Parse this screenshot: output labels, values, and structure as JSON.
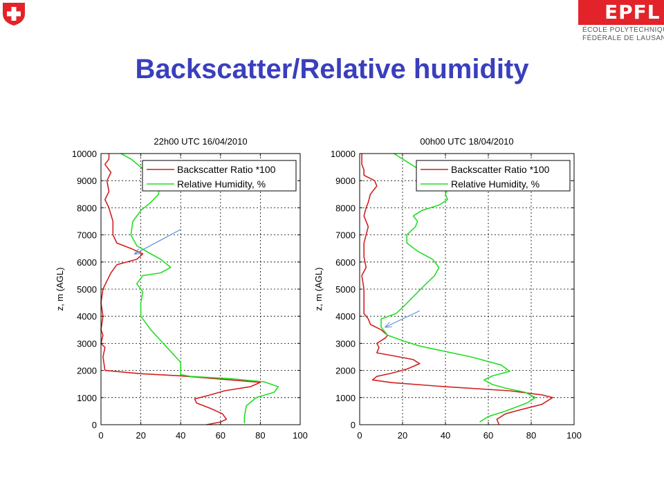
{
  "page": {
    "title": "Backscatter/Relative humidity"
  },
  "logos": {
    "swiss_icon": "swiss-cross-icon",
    "epfl": {
      "letters": "EPFL",
      "line1": "ÉCOLE POLYTECHNIQUE",
      "line2": "FÉDÉRALE DE LAUSANNE",
      "color": "#e2232a"
    }
  },
  "colors": {
    "title": "#3a3fbd",
    "backscatter": "#d11f1f",
    "humidity": "#22dd22",
    "arrow": "#5b8fd6"
  },
  "chart_data": [
    {
      "type": "line",
      "title": "22h00 UTC 16/04/2010",
      "xlabel": "",
      "ylabel": "z, m (AGL)",
      "xlim": [
        0,
        100
      ],
      "ylim": [
        0,
        10000
      ],
      "xticks": [
        0,
        20,
        40,
        60,
        80,
        100
      ],
      "yticks": [
        0,
        1000,
        2000,
        3000,
        4000,
        5000,
        6000,
        7000,
        8000,
        9000,
        10000
      ],
      "grid": true,
      "legend": "top-right",
      "series": [
        {
          "name": "Backscatter Ratio *100",
          "color": "#d11f1f",
          "points": [
            [
              53,
              0
            ],
            [
              60,
              100
            ],
            [
              63,
              200
            ],
            [
              61,
              400
            ],
            [
              55,
              600
            ],
            [
              48,
              800
            ],
            [
              47,
              950
            ],
            [
              55,
              1100
            ],
            [
              62,
              1250
            ],
            [
              75,
              1400
            ],
            [
              80,
              1560
            ],
            [
              60,
              1680
            ],
            [
              40,
              1800
            ],
            [
              20,
              1880
            ],
            [
              2,
              2000
            ],
            [
              1,
              2500
            ],
            [
              2,
              2850
            ],
            [
              0,
              3000
            ],
            [
              1,
              3300
            ],
            [
              0,
              3500
            ],
            [
              1,
              4000
            ],
            [
              0,
              4500
            ],
            [
              1,
              5000
            ],
            [
              3,
              5300
            ],
            [
              5,
              5600
            ],
            [
              8,
              5900
            ],
            [
              18,
              6100
            ],
            [
              21,
              6300
            ],
            [
              15,
              6500
            ],
            [
              8,
              6700
            ],
            [
              6,
              7000
            ],
            [
              6,
              7500
            ],
            [
              4,
              8000
            ],
            [
              2,
              8300
            ],
            [
              4,
              8600
            ],
            [
              3,
              9000
            ],
            [
              5,
              9300
            ],
            [
              2,
              9600
            ],
            [
              4,
              9800
            ],
            [
              4,
              10000
            ]
          ]
        },
        {
          "name": "Relative Humidity, %",
          "color": "#22dd22",
          "points": [
            [
              72,
              50
            ],
            [
              72,
              300
            ],
            [
              73,
              700
            ],
            [
              78,
              1000
            ],
            [
              87,
              1200
            ],
            [
              89,
              1400
            ],
            [
              82,
              1580
            ],
            [
              65,
              1700
            ],
            [
              45,
              1780
            ],
            [
              40,
              1850
            ],
            [
              40,
              2000
            ],
            [
              40,
              2300
            ],
            [
              35,
              2700
            ],
            [
              30,
              3100
            ],
            [
              25,
              3500
            ],
            [
              20,
              4000
            ],
            [
              20,
              4500
            ],
            [
              21,
              4900
            ],
            [
              18,
              5200
            ],
            [
              21,
              5500
            ],
            [
              30,
              5600
            ],
            [
              35,
              5800
            ],
            [
              30,
              6100
            ],
            [
              25,
              6300
            ],
            [
              18,
              6600
            ],
            [
              15,
              7000
            ],
            [
              16,
              7500
            ],
            [
              20,
              7900
            ],
            [
              25,
              8200
            ],
            [
              29,
              8500
            ],
            [
              29,
              8700
            ],
            [
              28,
              9000
            ],
            [
              23,
              9300
            ],
            [
              20,
              9500
            ],
            [
              15,
              9800
            ],
            [
              10,
              10000
            ]
          ]
        }
      ],
      "annotations": [
        {
          "type": "arrow",
          "from": [
            40,
            7200
          ],
          "to": [
            17,
            6300
          ]
        }
      ]
    },
    {
      "type": "line",
      "title": "00h00 UTC 18/04/2010",
      "xlabel": "",
      "ylabel": "z, m (AGL)",
      "xlim": [
        0,
        100
      ],
      "ylim": [
        0,
        10000
      ],
      "xticks": [
        0,
        20,
        40,
        60,
        80,
        100
      ],
      "yticks": [
        0,
        1000,
        2000,
        3000,
        4000,
        5000,
        6000,
        7000,
        8000,
        9000,
        10000
      ],
      "grid": true,
      "legend": "top-right",
      "series": [
        {
          "name": "Backscatter Ratio *100",
          "color": "#d11f1f",
          "points": [
            [
              65,
              0
            ],
            [
              64,
              200
            ],
            [
              68,
              400
            ],
            [
              75,
              550
            ],
            [
              85,
              750
            ],
            [
              90,
              1000
            ],
            [
              85,
              1100
            ],
            [
              70,
              1250
            ],
            [
              40,
              1400
            ],
            [
              15,
              1550
            ],
            [
              6,
              1650
            ],
            [
              8,
              1780
            ],
            [
              15,
              1900
            ],
            [
              22,
              2050
            ],
            [
              28,
              2250
            ],
            [
              25,
              2400
            ],
            [
              15,
              2550
            ],
            [
              8,
              2650
            ],
            [
              9,
              2850
            ],
            [
              8,
              3000
            ],
            [
              12,
              3200
            ],
            [
              13,
              3300
            ],
            [
              10,
              3500
            ],
            [
              5,
              3700
            ],
            [
              4,
              3900
            ],
            [
              2,
              4100
            ],
            [
              2,
              4500
            ],
            [
              2,
              5000
            ],
            [
              1,
              5500
            ],
            [
              3,
              5800
            ],
            [
              2,
              6200
            ],
            [
              2,
              6700
            ],
            [
              3,
              7000
            ],
            [
              4,
              7300
            ],
            [
              2,
              7700
            ],
            [
              3,
              8000
            ],
            [
              4,
              8200
            ],
            [
              5,
              8500
            ],
            [
              8,
              8800
            ],
            [
              7,
              9000
            ],
            [
              2,
              9200
            ],
            [
              2,
              9400
            ],
            [
              1,
              9600
            ],
            [
              1,
              10000
            ]
          ]
        },
        {
          "name": "Relative Humidity, %",
          "color": "#22dd22",
          "points": [
            [
              56,
              100
            ],
            [
              60,
              300
            ],
            [
              68,
              500
            ],
            [
              78,
              800
            ],
            [
              82,
              1000
            ],
            [
              77,
              1200
            ],
            [
              68,
              1350
            ],
            [
              62,
              1480
            ],
            [
              58,
              1650
            ],
            [
              62,
              1800
            ],
            [
              70,
              1970
            ],
            [
              66,
              2200
            ],
            [
              52,
              2500
            ],
            [
              40,
              2700
            ],
            [
              28,
              2900
            ],
            [
              20,
              3100
            ],
            [
              13,
              3300
            ],
            [
              10,
              3600
            ],
            [
              10,
              3900
            ],
            [
              17,
              4100
            ],
            [
              21,
              4400
            ],
            [
              26,
              4800
            ],
            [
              31,
              5200
            ],
            [
              35,
              5500
            ],
            [
              37,
              5800
            ],
            [
              34,
              6100
            ],
            [
              27,
              6400
            ],
            [
              22,
              6700
            ],
            [
              22,
              7000
            ],
            [
              26,
              7300
            ],
            [
              27,
              7500
            ],
            [
              25,
              7700
            ],
            [
              29,
              7900
            ],
            [
              37,
              8100
            ],
            [
              41,
              8300
            ],
            [
              40,
              8500
            ],
            [
              41,
              8700
            ],
            [
              35,
              9100
            ],
            [
              28,
              9400
            ],
            [
              22,
              9700
            ],
            [
              16,
              10000
            ]
          ]
        }
      ],
      "annotations": [
        {
          "type": "arrow",
          "from": [
            28,
            4200
          ],
          "to": [
            12,
            3600
          ]
        }
      ]
    }
  ]
}
